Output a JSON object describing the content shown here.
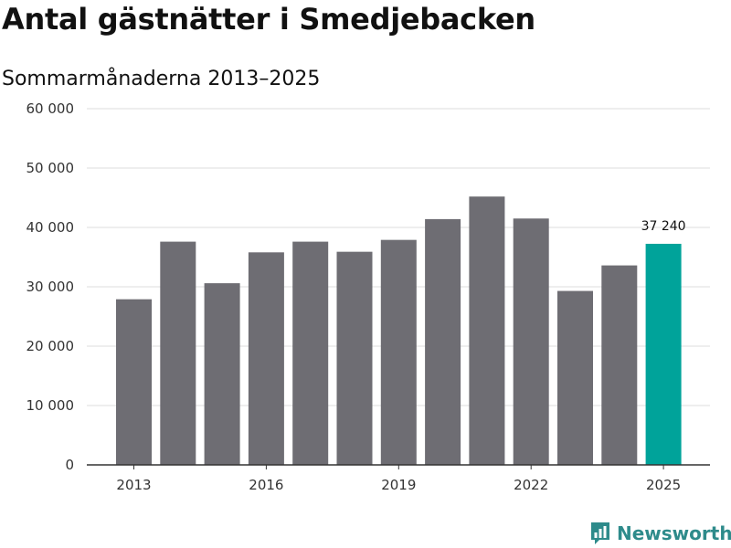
{
  "title": "Antal gästnätter i Smedjebacken",
  "subtitle": "Sommarmånaderna 2013–2025",
  "logo": {
    "text": "Newsworthy",
    "icon": "newsworthy-logo-icon"
  },
  "colors": {
    "bar": "#6e6d73",
    "highlight": "#00a39a",
    "grid": "#dddddd",
    "axis": "#333333"
  },
  "chart_data": {
    "type": "bar",
    "title": "",
    "xlabel": "",
    "ylabel": "",
    "ylim": [
      0,
      60000
    ],
    "yticks": [
      0,
      10000,
      20000,
      30000,
      40000,
      50000,
      60000
    ],
    "ytick_labels": [
      "0",
      "10 000",
      "20 000",
      "30 000",
      "40 000",
      "50 000",
      "60 000"
    ],
    "xtick_labels": [
      "2013",
      "2016",
      "2019",
      "2022",
      "2025"
    ],
    "grid": true,
    "legend": "none",
    "categories": [
      "2013",
      "2014",
      "2015",
      "2016",
      "2017",
      "2018",
      "2019",
      "2020",
      "2021",
      "2022",
      "2023",
      "2024",
      "2025"
    ],
    "values": [
      27900,
      37600,
      30600,
      35800,
      37600,
      35900,
      37900,
      41400,
      45200,
      41500,
      29300,
      33600,
      37240
    ],
    "highlight": [
      "2025"
    ],
    "data_labels": [
      {
        "category": "2025",
        "text": "37 240"
      }
    ]
  }
}
